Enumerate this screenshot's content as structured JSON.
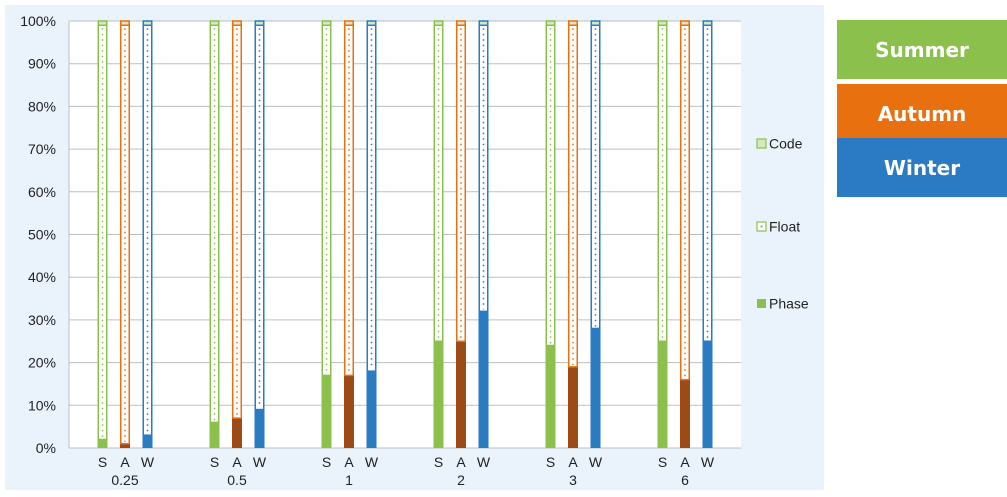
{
  "colors": {
    "summer": "#8cc04d",
    "autumn": "#e9700f",
    "winter": "#2a7bc3",
    "autumn_phase": "#9c4a17",
    "plot_bg": "#eaf3fb",
    "grid": "#bfbfbf"
  },
  "season_boxes": [
    {
      "label": "Summer",
      "color": "#8cc04d"
    },
    {
      "label": "Autumn",
      "color": "#e9700f"
    },
    {
      "label": "Winter",
      "color": "#2a7bc3"
    }
  ],
  "chart_data": {
    "type": "bar",
    "stacked": true,
    "percent": true,
    "groups": [
      "0.25",
      "0.5",
      "1",
      "2",
      "3",
      "6"
    ],
    "bar_labels": [
      "S",
      "A",
      "W"
    ],
    "series": [
      {
        "name": "Phase",
        "style": "solid"
      },
      {
        "name": "Float",
        "style": "dotted-outline"
      },
      {
        "name": "Code",
        "style": "light-fill"
      }
    ],
    "phase": {
      "S": [
        2,
        6,
        17,
        25,
        24,
        25
      ],
      "A": [
        1,
        7,
        17,
        25,
        19,
        16
      ],
      "W": [
        3,
        9,
        18,
        32,
        28,
        25
      ]
    },
    "float": {
      "S": [
        97,
        93,
        82,
        74,
        75,
        74
      ],
      "A": [
        98,
        92,
        82,
        74,
        80,
        83
      ],
      "W": [
        96,
        90,
        81,
        67,
        71,
        74
      ]
    },
    "code": {
      "S": [
        1,
        1,
        1,
        1,
        1,
        1
      ],
      "A": [
        1,
        1,
        1,
        1,
        1,
        1
      ],
      "W": [
        1,
        1,
        1,
        1,
        1,
        1
      ]
    },
    "yticks": [
      "0%",
      "10%",
      "20%",
      "30%",
      "40%",
      "50%",
      "60%",
      "70%",
      "80%",
      "90%",
      "100%"
    ],
    "ylim": [
      0,
      100
    ],
    "legend": [
      "Code",
      "Float",
      "Phase"
    ],
    "legend_position": "right",
    "grid": true
  }
}
